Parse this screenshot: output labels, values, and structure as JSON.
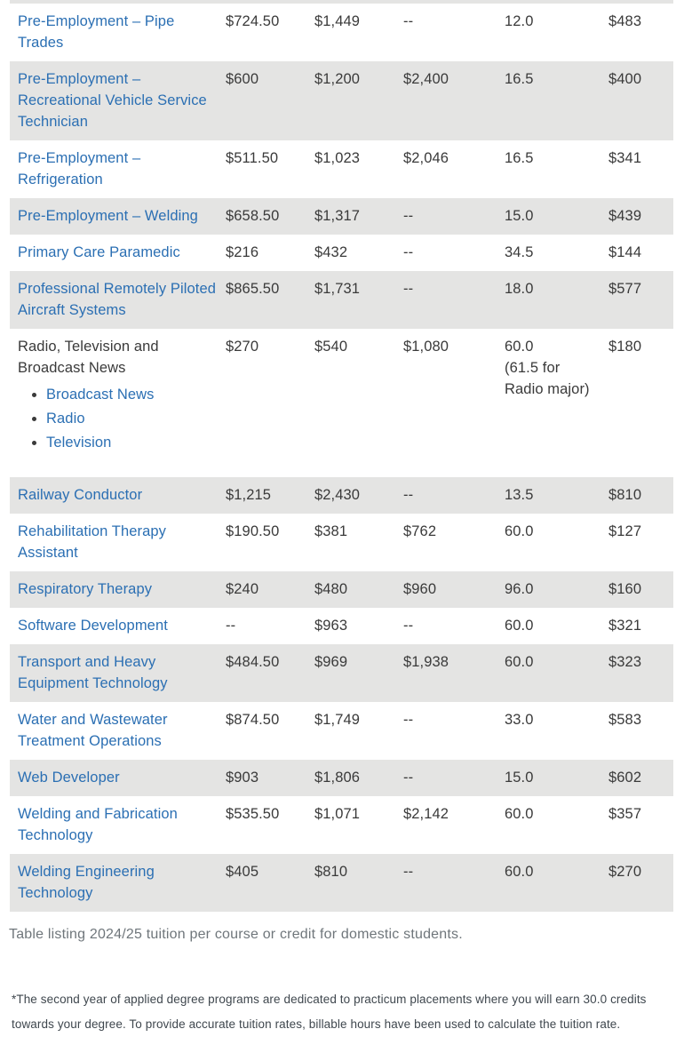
{
  "table": {
    "rows": [
      {
        "program": "Pre-Employment – Pipe Trades",
        "link": true,
        "values": [
          "$724.50",
          "$1,449",
          "--",
          "12.0",
          "$483"
        ]
      },
      {
        "program": "Pre-Employment – Recreational Vehicle Service Technician",
        "link": true,
        "values": [
          "$600",
          "$1,200",
          "$2,400",
          "16.5",
          "$400"
        ]
      },
      {
        "program": "Pre-Employment – Refrigeration",
        "link": true,
        "values": [
          "$511.50",
          "$1,023",
          "$2,046",
          "16.5",
          "$341"
        ]
      },
      {
        "program": "Pre-Employment – Welding",
        "link": true,
        "values": [
          "$658.50",
          "$1,317",
          "--",
          "15.0",
          "$439"
        ]
      },
      {
        "program": "Primary Care Paramedic",
        "link": true,
        "values": [
          "$216",
          "$432",
          "--",
          "34.5",
          "$144"
        ]
      },
      {
        "program": "Professional Remotely Piloted Aircraft Systems",
        "link": true,
        "values": [
          "$865.50",
          "$1,731",
          "--",
          "18.0",
          "$577"
        ]
      },
      {
        "program": "Radio, Television and Broadcast News",
        "link": false,
        "sublinks": [
          "Broadcast News",
          "Radio",
          "Television"
        ],
        "values": [
          "$270",
          "$540",
          "$1,080",
          "60.0\n(61.5 for\nRadio major)",
          "$180"
        ]
      },
      {
        "program": "Railway Conductor",
        "link": true,
        "values": [
          "$1,215",
          "$2,430",
          "--",
          "13.5",
          "$810"
        ]
      },
      {
        "program": "Rehabilitation Therapy Assistant",
        "link": true,
        "values": [
          "$190.50",
          "$381",
          "$762",
          "60.0",
          "$127"
        ]
      },
      {
        "program": "Respiratory Therapy",
        "link": true,
        "values": [
          "$240",
          "$480",
          "$960",
          "96.0",
          "$160"
        ]
      },
      {
        "program": "Software Development",
        "link": true,
        "values": [
          "--",
          "$963",
          "--",
          "60.0",
          "$321"
        ]
      },
      {
        "program": "Transport and Heavy Equipment Technology",
        "link": true,
        "values": [
          "$484.50",
          "$969",
          "$1,938",
          "60.0",
          "$323"
        ]
      },
      {
        "program": "Water and Wastewater Treatment Operations",
        "link": true,
        "values": [
          "$874.50",
          "$1,749",
          "--",
          "33.0",
          "$583"
        ]
      },
      {
        "program": "Web Developer",
        "link": true,
        "values": [
          "$903",
          "$1,806",
          "--",
          "15.0",
          "$602"
        ]
      },
      {
        "program": "Welding and Fabrication Technology",
        "link": true,
        "values": [
          "$535.50",
          "$1,071",
          "$2,142",
          "60.0",
          "$357"
        ]
      },
      {
        "program": "Welding Engineering Technology",
        "link": true,
        "values": [
          "$405",
          "$810",
          "--",
          "60.0",
          "$270"
        ]
      }
    ]
  },
  "caption": "Table listing 2024/25 tuition per course or credit for domestic students.",
  "footnote": "*The second year of applied degree programs are dedicated to practicum placements where you will earn 30.0 credits towards your degree. To provide accurate tuition rates, billable hours have been used to calculate the tuition rate.",
  "colors": {
    "link_blue": "#2b6fb3",
    "row_stripe_gray": "#e4e4e3",
    "body_text": "#3a3a3a",
    "caption_gray": "#6f767b",
    "footnote_gray": "#3f474e"
  }
}
